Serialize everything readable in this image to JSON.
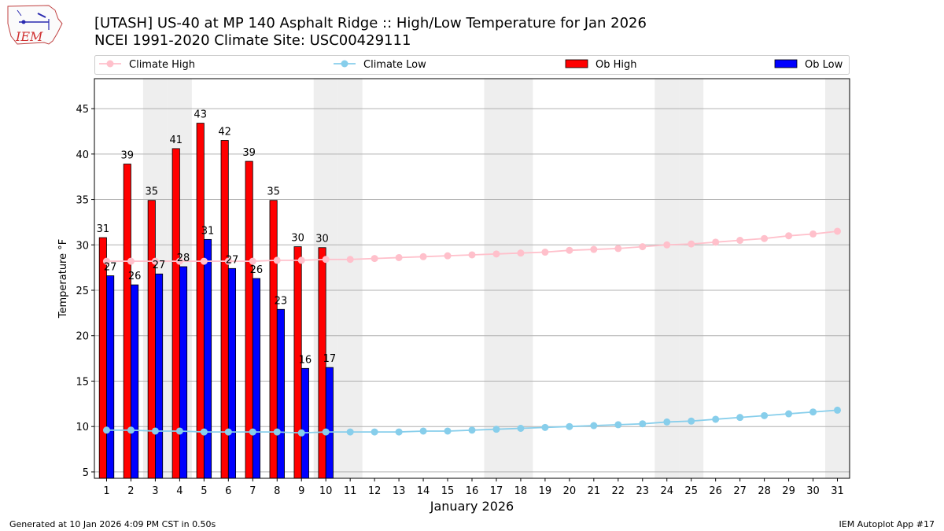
{
  "chart_data": {
    "type": "bar",
    "title": "[UTASH] US-40 at MP 140 Asphalt Ridge  :: High/Low Temperature for Jan 2026",
    "subtitle": "NCEI 1991-2020 Climate Site: USC00429111",
    "xlabel": "January 2026",
    "ylabel": "Temperature °F",
    "ylim": [
      4.3,
      48.3
    ],
    "yticks": [
      5,
      10,
      15,
      20,
      25,
      30,
      35,
      40,
      45
    ],
    "days": [
      1,
      2,
      3,
      4,
      5,
      6,
      7,
      8,
      9,
      10,
      11,
      12,
      13,
      14,
      15,
      16,
      17,
      18,
      19,
      20,
      21,
      22,
      23,
      24,
      25,
      26,
      27,
      28,
      29,
      30,
      31
    ],
    "weekend_days": [
      3,
      4,
      10,
      11,
      17,
      18,
      24,
      25,
      31
    ],
    "grid": "horizontal",
    "legend_position": "top",
    "series": [
      {
        "name": "Climate High",
        "kind": "line",
        "color": "#ffc0cb",
        "values": [
          28.2,
          28.2,
          28.2,
          28.2,
          28.2,
          28.2,
          28.2,
          28.3,
          28.3,
          28.4,
          28.4,
          28.5,
          28.6,
          28.7,
          28.8,
          28.9,
          29.0,
          29.1,
          29.2,
          29.4,
          29.5,
          29.6,
          29.8,
          30.0,
          30.1,
          30.3,
          30.5,
          30.7,
          31.0,
          31.2,
          31.5
        ]
      },
      {
        "name": "Climate Low",
        "kind": "line",
        "color": "#87ceeb",
        "values": [
          9.6,
          9.6,
          9.5,
          9.5,
          9.4,
          9.4,
          9.4,
          9.4,
          9.3,
          9.4,
          9.4,
          9.4,
          9.4,
          9.5,
          9.5,
          9.6,
          9.7,
          9.8,
          9.9,
          10.0,
          10.1,
          10.2,
          10.3,
          10.5,
          10.6,
          10.8,
          11.0,
          11.2,
          11.4,
          11.6,
          11.8
        ]
      },
      {
        "name": "Ob High",
        "kind": "bar",
        "color": "#ff0000",
        "values": [
          30.8,
          38.9,
          34.9,
          40.6,
          43.4,
          41.5,
          39.2,
          34.9,
          29.8,
          29.7
        ],
        "labels": [
          "31",
          "39",
          "35",
          "41",
          "43",
          "42",
          "39",
          "35",
          "30",
          "30"
        ]
      },
      {
        "name": "Ob Low",
        "kind": "bar",
        "color": "#0000ff",
        "values": [
          26.6,
          25.6,
          26.8,
          27.6,
          30.6,
          27.4,
          26.3,
          22.9,
          16.4,
          16.5
        ],
        "labels": [
          "27",
          "26",
          "27",
          "28",
          "31",
          "27",
          "26",
          "23",
          "16",
          "17"
        ]
      }
    ]
  },
  "footer": {
    "generated": "Generated at 10 Jan 2026 4:09 PM CST in 0.50s",
    "app": "IEM Autoplot App #17"
  },
  "logo": {
    "text": "IEM"
  }
}
